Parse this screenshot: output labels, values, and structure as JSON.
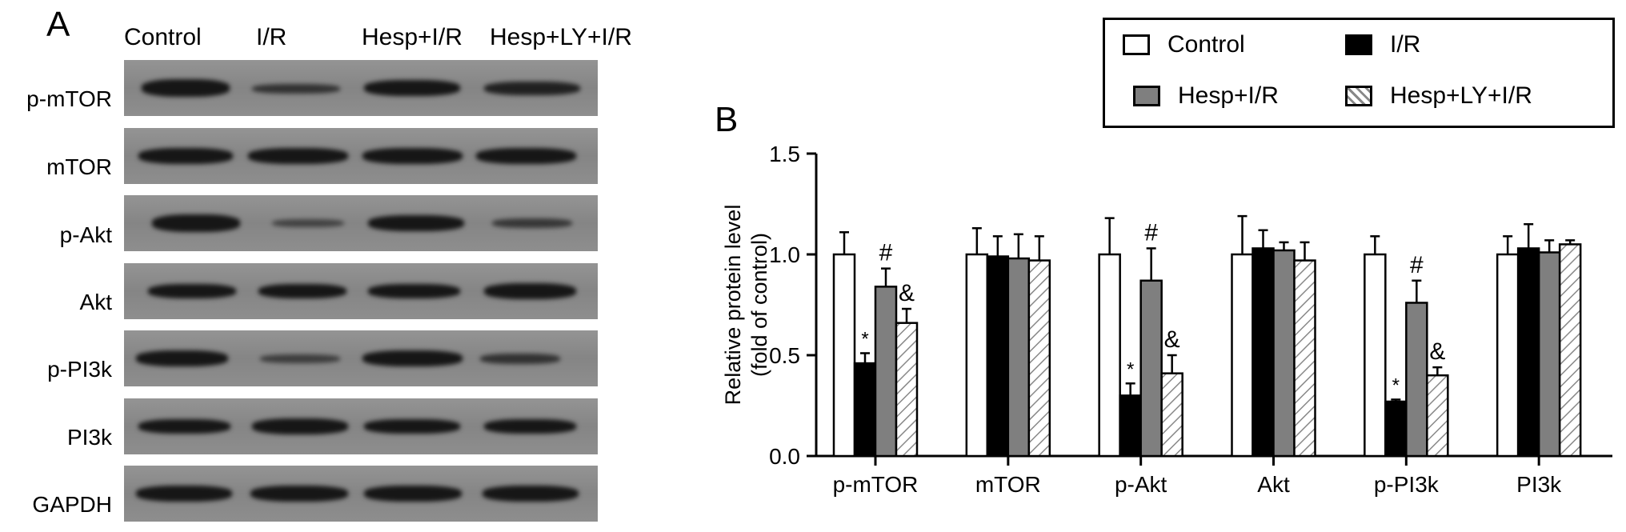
{
  "panel_a": {
    "letter": "A",
    "lanes": [
      "Control",
      "I/R",
      "Hesp+I/R",
      "Hesp+LY+I/R"
    ],
    "rows": [
      "p-mTOR",
      "mTOR",
      "p-Akt",
      "Akt",
      "p-PI3k",
      "PI3k",
      "GAPDH"
    ]
  },
  "panel_b": {
    "letter": "B"
  },
  "colors": {
    "control": "#ffffff",
    "ir": "#000000",
    "hesp_ir": "#7f7f7f",
    "hesp_ly_ir": "hatched"
  },
  "chart_data": {
    "type": "bar",
    "categories": [
      "p-mTOR",
      "mTOR",
      "p-Akt",
      "Akt",
      "p-PI3k",
      "PI3k"
    ],
    "ylabel_line1": "Relative protein level",
    "ylabel_line2": "(fold of control)",
    "ylim": [
      0,
      1.5
    ],
    "yticks": [
      "0.0",
      "0.5",
      "1.0",
      "1.5"
    ],
    "legend_position": "top-right",
    "series": [
      {
        "name": "Control",
        "values": [
          1.0,
          1.0,
          1.0,
          1.0,
          1.0,
          1.0
        ],
        "errors": [
          0.11,
          0.13,
          0.18,
          0.19,
          0.09,
          0.09
        ]
      },
      {
        "name": "I/R",
        "values": [
          0.46,
          0.99,
          0.3,
          1.03,
          0.27,
          1.03
        ],
        "errors": [
          0.05,
          0.1,
          0.06,
          0.09,
          0.01,
          0.12
        ]
      },
      {
        "name": "Hesp+I/R",
        "values": [
          0.84,
          0.98,
          0.87,
          1.02,
          0.76,
          1.01
        ],
        "errors": [
          0.09,
          0.12,
          0.16,
          0.04,
          0.11,
          0.06
        ]
      },
      {
        "name": "Hesp+LY+I/R",
        "values": [
          0.66,
          0.97,
          0.41,
          0.97,
          0.4,
          1.05
        ],
        "errors": [
          0.07,
          0.12,
          0.09,
          0.09,
          0.04,
          0.02
        ]
      }
    ],
    "annotations": [
      {
        "category": "p-mTOR",
        "series": "I/R",
        "text": "*"
      },
      {
        "category": "p-mTOR",
        "series": "Hesp+I/R",
        "text": "#"
      },
      {
        "category": "p-mTOR",
        "series": "Hesp+LY+I/R",
        "text": "&"
      },
      {
        "category": "p-Akt",
        "series": "I/R",
        "text": "*"
      },
      {
        "category": "p-Akt",
        "series": "Hesp+I/R",
        "text": "#"
      },
      {
        "category": "p-Akt",
        "series": "Hesp+LY+I/R",
        "text": "&"
      },
      {
        "category": "p-PI3k",
        "series": "I/R",
        "text": "*"
      },
      {
        "category": "p-PI3k",
        "series": "Hesp+I/R",
        "text": "#"
      },
      {
        "category": "p-PI3k",
        "series": "Hesp+LY+I/R",
        "text": "&"
      }
    ]
  }
}
